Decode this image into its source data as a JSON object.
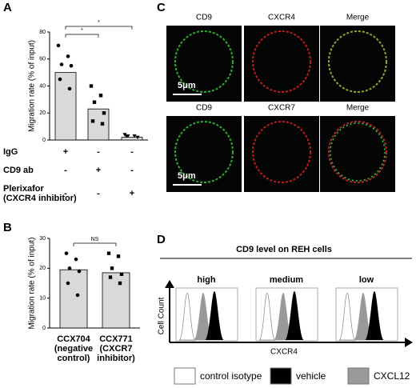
{
  "panel_labels": [
    "A",
    "B",
    "C",
    "D"
  ],
  "chart_data": [
    {
      "type": "bar",
      "y_label": "Migration rate (% of input)",
      "ylim": [
        0,
        80
      ],
      "yticks": [
        0,
        20,
        40,
        60,
        80
      ],
      "categories": [
        null,
        null,
        null
      ],
      "values": [
        50,
        23,
        2
      ],
      "color": "#d9d9d9",
      "markers": [
        "circle",
        "square",
        "triangle"
      ],
      "points": [
        [
          70,
          62,
          56,
          55,
          45,
          38
        ],
        [
          40,
          33,
          28,
          20,
          14,
          12
        ],
        [
          4,
          3,
          3,
          2,
          3
        ]
      ],
      "significance": [
        {
          "from": 0,
          "to": 1,
          "label": "*"
        },
        {
          "from": 0,
          "to": 2,
          "label": "*"
        }
      ],
      "conditions": [
        {
          "label": [
            "IgG"
          ],
          "marks": [
            "+",
            "-",
            "-"
          ]
        },
        {
          "label": [
            "CD9 ab"
          ],
          "marks": [
            "-",
            "+",
            "-"
          ]
        },
        {
          "label": [
            "Plerixafor",
            "(CXCR4 inhibitor)"
          ],
          "marks": [
            "-",
            "-",
            "+"
          ]
        }
      ]
    },
    {
      "type": "bar",
      "y_label": "Migration rate (% of input)",
      "ylim": [
        0,
        30
      ],
      "yticks": [
        0,
        10,
        20,
        30
      ],
      "categories": [
        [
          "CCX704",
          "(negative",
          "control)"
        ],
        [
          "CCX771",
          "(CXCR7",
          "inhibitor)"
        ]
      ],
      "values": [
        19.5,
        18.5
      ],
      "color": "#d9d9d9",
      "markers": [
        "circle",
        "square"
      ],
      "points": [
        [
          25,
          23,
          20,
          19,
          15,
          11
        ],
        [
          25,
          24,
          20,
          18,
          17,
          15
        ]
      ],
      "significance": [
        {
          "from": 0,
          "to": 1,
          "label": "NS"
        }
      ]
    }
  ],
  "microscopy": {
    "rows": [
      [
        "CD9",
        "CXCR4",
        "Merge"
      ],
      [
        "CD9",
        "CXCR7",
        "Merge"
      ]
    ],
    "scale_bar": "5μm"
  },
  "histograms": {
    "title": "CD9 level on REH cells",
    "panels": [
      "high",
      "medium",
      "low"
    ],
    "y_label": "Cell Count",
    "x_label": "CXCR4",
    "legend": [
      {
        "name": "control isotype",
        "color": "#ffffff"
      },
      {
        "name": "vehicle",
        "color": "#000000"
      },
      {
        "name": "CXCL12",
        "color": "#999999"
      }
    ]
  }
}
